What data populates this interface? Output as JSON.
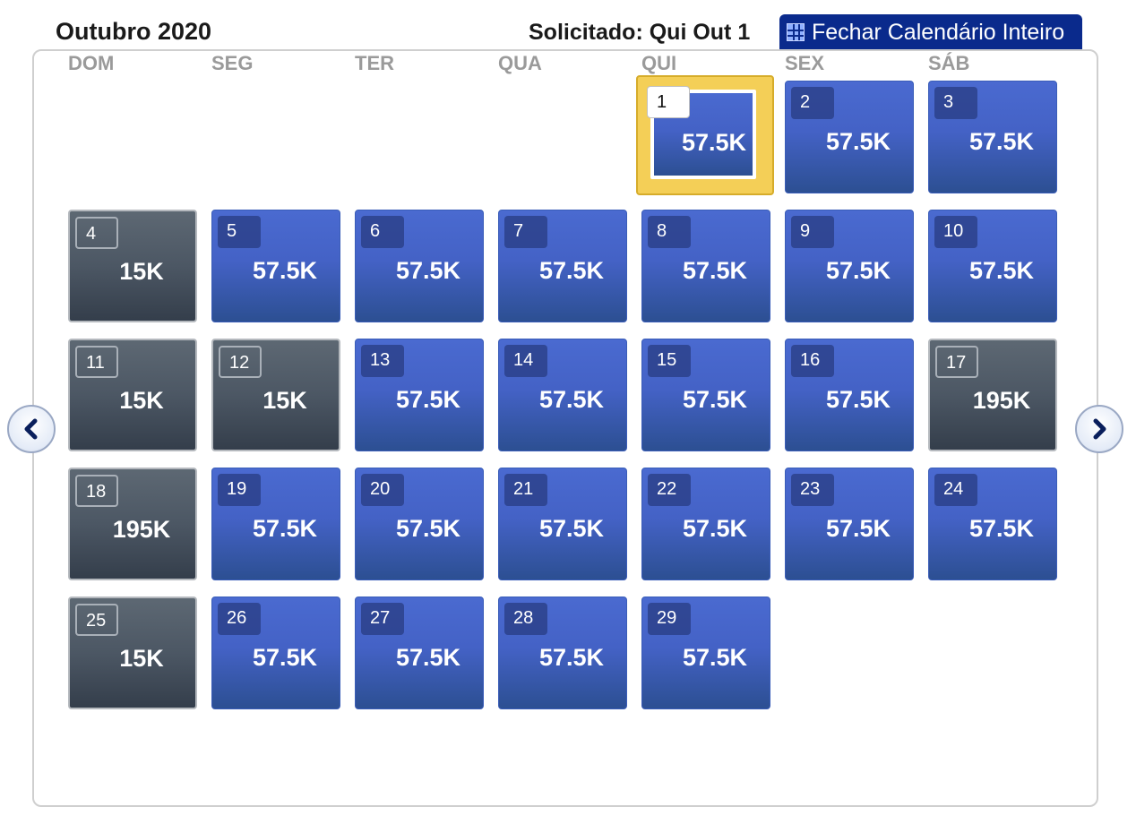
{
  "header": {
    "month_title": "Outubro 2020",
    "requested": "Solicitado: Qui Out 1",
    "close_calendar_label": "Fechar Calendário Inteiro"
  },
  "weekdays": [
    "DOM",
    "SEG",
    "TER",
    "QUA",
    "QUI",
    "SEX",
    "SÁB"
  ],
  "days": [
    {
      "day": "1",
      "price": "57.5K",
      "status": "selected"
    },
    {
      "day": "2",
      "price": "57.5K",
      "status": "blue"
    },
    {
      "day": "3",
      "price": "57.5K",
      "status": "blue"
    },
    {
      "day": "4",
      "price": "15K",
      "status": "gray"
    },
    {
      "day": "5",
      "price": "57.5K",
      "status": "blue"
    },
    {
      "day": "6",
      "price": "57.5K",
      "status": "blue"
    },
    {
      "day": "7",
      "price": "57.5K",
      "status": "blue"
    },
    {
      "day": "8",
      "price": "57.5K",
      "status": "blue"
    },
    {
      "day": "9",
      "price": "57.5K",
      "status": "blue"
    },
    {
      "day": "10",
      "price": "57.5K",
      "status": "blue"
    },
    {
      "day": "11",
      "price": "15K",
      "status": "gray"
    },
    {
      "day": "12",
      "price": "15K",
      "status": "gray"
    },
    {
      "day": "13",
      "price": "57.5K",
      "status": "blue"
    },
    {
      "day": "14",
      "price": "57.5K",
      "status": "blue"
    },
    {
      "day": "15",
      "price": "57.5K",
      "status": "blue"
    },
    {
      "day": "16",
      "price": "57.5K",
      "status": "blue"
    },
    {
      "day": "17",
      "price": "195K",
      "status": "gray"
    },
    {
      "day": "18",
      "price": "195K",
      "status": "gray"
    },
    {
      "day": "19",
      "price": "57.5K",
      "status": "blue"
    },
    {
      "day": "20",
      "price": "57.5K",
      "status": "blue"
    },
    {
      "day": "21",
      "price": "57.5K",
      "status": "blue"
    },
    {
      "day": "22",
      "price": "57.5K",
      "status": "blue"
    },
    {
      "day": "23",
      "price": "57.5K",
      "status": "blue"
    },
    {
      "day": "24",
      "price": "57.5K",
      "status": "blue"
    },
    {
      "day": "25",
      "price": "15K",
      "status": "gray"
    },
    {
      "day": "26",
      "price": "57.5K",
      "status": "blue"
    },
    {
      "day": "27",
      "price": "57.5K",
      "status": "blue"
    },
    {
      "day": "28",
      "price": "57.5K",
      "status": "blue"
    },
    {
      "day": "29",
      "price": "57.5K",
      "status": "blue"
    }
  ],
  "icons": {
    "close_calendar": "grid-icon",
    "prev": "chevron-left-icon",
    "next": "chevron-right-icon"
  },
  "colors": {
    "header_button": "#0a2a8c",
    "available_blue": "#4462c6",
    "unavailable_gray": "#4c5764",
    "selected_gold": "#f4cf57"
  }
}
